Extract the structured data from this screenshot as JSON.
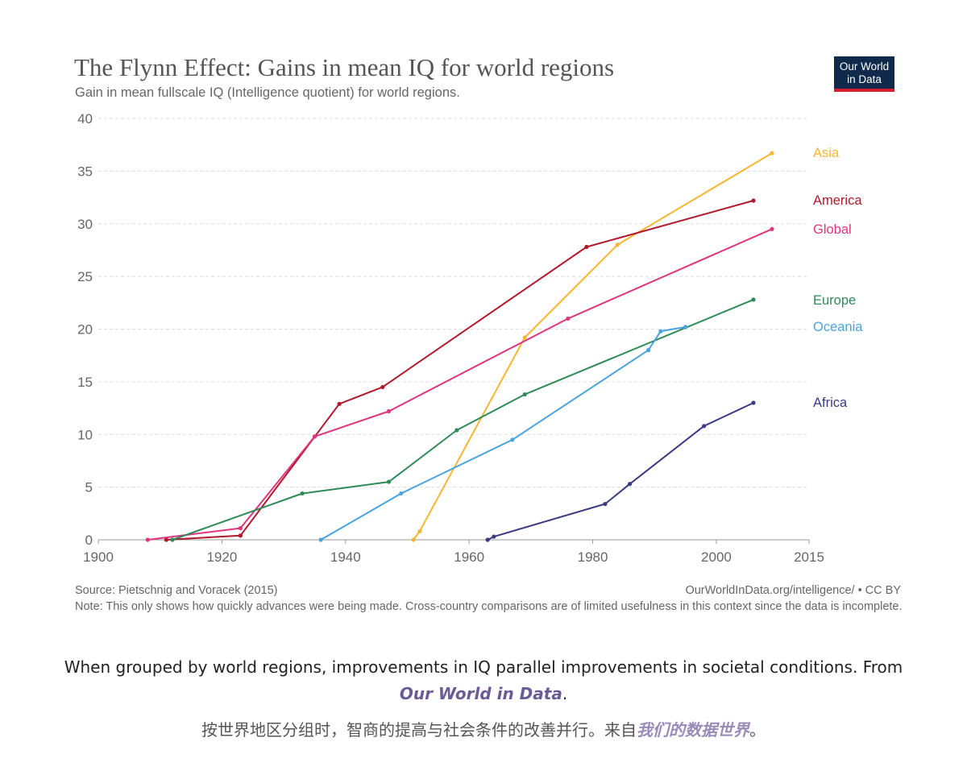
{
  "title": "The Flynn Effect: Gains in mean IQ for world regions",
  "subtitle": "Gain in mean fullscale IQ (Intelligence quotient) for world regions.",
  "logo": {
    "line1": "Our World",
    "line2": "in Data"
  },
  "source": "Source: Pietschnig and Voracek (2015)",
  "url": "OurWorldInData.org/intelligence/ • CC BY",
  "note": "Note: This only shows how quickly advances were being made. Cross-country comparisons are of limited usefulness in this context since the data is incomplete.",
  "caption": {
    "text": "When grouped by world regions, improvements in IQ parallel improvements in societal conditions. From",
    "source": "Our World in Data",
    "end": "."
  },
  "caption_zh": {
    "text": "按世界地区分组时，智商的提高与社会条件的改善并行。来自",
    "source": "我们的数据世界",
    "end": "。"
  },
  "chart_data": {
    "type": "line",
    "title": "The Flynn Effect: Gains in mean IQ for world regions",
    "subtitle": "Gain in mean fullscale IQ (Intelligence quotient) for world regions.",
    "xlabel": "",
    "ylabel": "",
    "xlim": [
      1900,
      2015
    ],
    "ylim": [
      0,
      40
    ],
    "x_ticks": [
      1900,
      1920,
      1940,
      1960,
      1980,
      2000,
      2015
    ],
    "y_ticks": [
      0,
      5,
      10,
      15,
      20,
      25,
      30,
      35,
      40
    ],
    "grid": "horizontal dashed",
    "legend": "right end labels",
    "series": [
      {
        "name": "Asia",
        "color": "#f5b731",
        "points": [
          [
            1951,
            0
          ],
          [
            1952,
            0.8
          ],
          [
            1969,
            19.2
          ],
          [
            1984,
            28
          ],
          [
            2009,
            36.7
          ]
        ]
      },
      {
        "name": "America",
        "color": "#b2182b",
        "points": [
          [
            1911,
            0
          ],
          [
            1923,
            0.4
          ],
          [
            1939,
            12.9
          ],
          [
            1946,
            14.5
          ],
          [
            1979,
            27.8
          ],
          [
            2006,
            32.2
          ]
        ]
      },
      {
        "name": "Global",
        "color": "#e0347f",
        "points": [
          [
            1908,
            0
          ],
          [
            1923,
            1.1
          ],
          [
            1935,
            9.8
          ],
          [
            1947,
            12.2
          ],
          [
            1976,
            21
          ],
          [
            2009,
            29.5
          ]
        ]
      },
      {
        "name": "Europe",
        "color": "#2e8b57",
        "points": [
          [
            1912,
            0
          ],
          [
            1933,
            4.4
          ],
          [
            1947,
            5.5
          ],
          [
            1958,
            10.4
          ],
          [
            1969,
            13.8
          ],
          [
            2006,
            22.8
          ]
        ]
      },
      {
        "name": "Oceania",
        "color": "#4aa3df",
        "points": [
          [
            1936,
            0
          ],
          [
            1949,
            4.4
          ],
          [
            1967,
            9.5
          ],
          [
            1989,
            18
          ],
          [
            1991,
            19.8
          ],
          [
            1995,
            20.2
          ]
        ]
      },
      {
        "name": "Africa",
        "color": "#3b3a82",
        "points": [
          [
            1963,
            0
          ],
          [
            1964,
            0.3
          ],
          [
            1982,
            3.4
          ],
          [
            1986,
            5.3
          ],
          [
            1998,
            10.8
          ],
          [
            2006,
            13
          ]
        ]
      }
    ]
  }
}
